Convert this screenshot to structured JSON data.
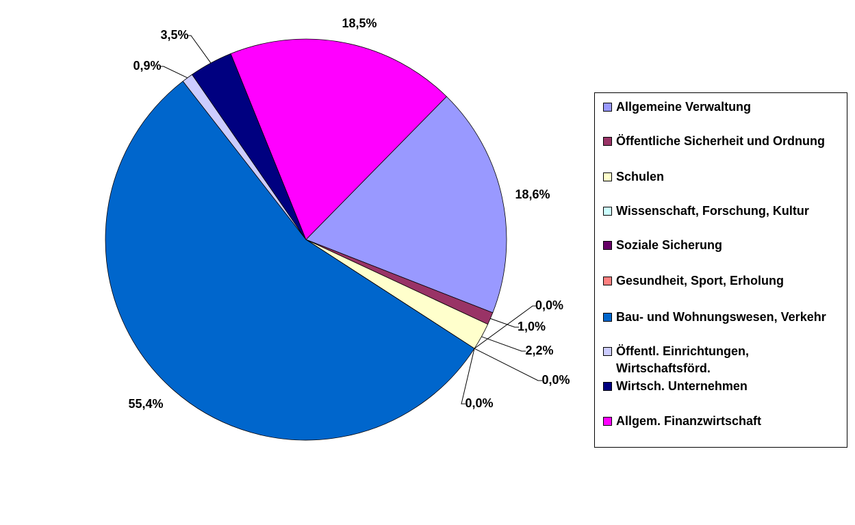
{
  "chart_data": {
    "type": "pie",
    "categories": [
      "Allgemeine Verwaltung",
      "Öffentliche Sicherheit und Ordnung",
      "Schulen",
      "Wissenschaft, Forschung, Kultur",
      "Soziale Sicherung",
      "Gesundheit, Sport, Erholung",
      "Bau- und Wohnungswesen, Verkehr",
      "Öffentl. Einrichtungen, Wirtschaftsförd.",
      "Wirtsch. Unternehmen",
      "Allgem. Finanzwirtschaft"
    ],
    "values": [
      18.6,
      1.0,
      2.2,
      0.0,
      0.0,
      0.0,
      55.4,
      0.9,
      3.5,
      18.5
    ],
    "value_labels": [
      "18,6%",
      "1,0%",
      "2,2%",
      "0,0%",
      "0,0%",
      "0,0%",
      "55,4%",
      "0,9%",
      "3,5%",
      "18,5%"
    ],
    "colors": [
      "#9999ff",
      "#993366",
      "#ffffcc",
      "#ccffff",
      "#660066",
      "#ff8080",
      "#0066cc",
      "#ccccff",
      "#000080",
      "#ff00ff"
    ],
    "legend": "right"
  }
}
